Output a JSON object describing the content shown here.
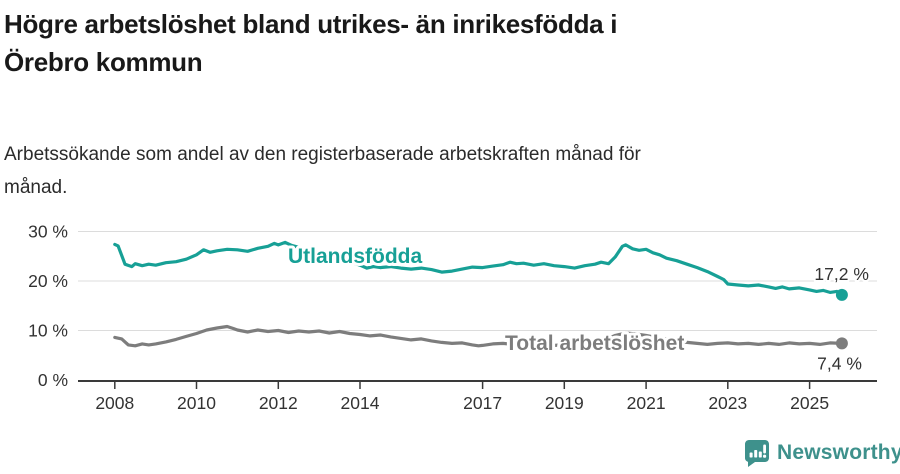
{
  "title": {
    "line1": "Högre arbetslöshet bland utrikes- än inrikesfödda i",
    "line2": "Örebro kommun"
  },
  "subtitle": {
    "line1": "Arbetssökande som andel av den registerbaserade arbetskraften månad för",
    "line2": "månad."
  },
  "footer": {
    "brand": "Newsworthy",
    "logo_icon": "bar-chart-speech-bubble-icon",
    "brand_color": "#3e918c"
  },
  "colors": {
    "background": "#ffffff",
    "axis": "#3a3a3a",
    "grid": "#dcdcdc",
    "tick_label": "#333333"
  },
  "chart_data": {
    "type": "line",
    "unit": "%",
    "grid": "horizontal-only",
    "legend": "inline-labels",
    "x_ticks": [
      2008,
      2010,
      2012,
      2014,
      2017,
      2019,
      2021,
      2023,
      2025
    ],
    "y_ticks": [
      0,
      10,
      20,
      30
    ],
    "y_tick_labels": [
      "0 %",
      "10 %",
      "20 %",
      "30 %"
    ],
    "xlim": [
      2007.1,
      2026.65
    ],
    "ylim": [
      0,
      30
    ],
    "series": [
      {
        "name": "Utlandsfödda",
        "color": "#17a096",
        "end_label": "17,2 %",
        "end_value": 17.2,
        "points": [
          [
            2008.0,
            27.4
          ],
          [
            2008.08,
            27.1
          ],
          [
            2008.25,
            23.4
          ],
          [
            2008.42,
            22.9
          ],
          [
            2008.5,
            23.5
          ],
          [
            2008.67,
            23.1
          ],
          [
            2008.83,
            23.4
          ],
          [
            2009.0,
            23.2
          ],
          [
            2009.25,
            23.7
          ],
          [
            2009.5,
            23.9
          ],
          [
            2009.75,
            24.4
          ],
          [
            2010.0,
            25.3
          ],
          [
            2010.17,
            26.3
          ],
          [
            2010.33,
            25.8
          ],
          [
            2010.5,
            26.1
          ],
          [
            2010.75,
            26.4
          ],
          [
            2011.0,
            26.3
          ],
          [
            2011.25,
            26.0
          ],
          [
            2011.5,
            26.6
          ],
          [
            2011.75,
            27.0
          ],
          [
            2011.9,
            27.6
          ],
          [
            2012.0,
            27.3
          ],
          [
            2012.17,
            27.8
          ],
          [
            2012.33,
            27.2
          ],
          [
            2012.5,
            26.8
          ],
          [
            2012.75,
            26.2
          ],
          [
            2013.0,
            25.7
          ],
          [
            2013.25,
            25.1
          ],
          [
            2013.5,
            24.5
          ],
          [
            2013.75,
            23.9
          ],
          [
            2014.0,
            23.2
          ],
          [
            2014.17,
            22.6
          ],
          [
            2014.33,
            22.9
          ],
          [
            2014.5,
            22.7
          ],
          [
            2014.75,
            22.9
          ],
          [
            2015.0,
            22.6
          ],
          [
            2015.25,
            22.4
          ],
          [
            2015.5,
            22.6
          ],
          [
            2015.75,
            22.3
          ],
          [
            2016.0,
            21.8
          ],
          [
            2016.25,
            22.0
          ],
          [
            2016.5,
            22.4
          ],
          [
            2016.75,
            22.8
          ],
          [
            2017.0,
            22.7
          ],
          [
            2017.25,
            23.0
          ],
          [
            2017.5,
            23.3
          ],
          [
            2017.67,
            23.8
          ],
          [
            2017.83,
            23.5
          ],
          [
            2018.0,
            23.6
          ],
          [
            2018.25,
            23.2
          ],
          [
            2018.5,
            23.5
          ],
          [
            2018.75,
            23.1
          ],
          [
            2019.0,
            22.9
          ],
          [
            2019.25,
            22.6
          ],
          [
            2019.5,
            23.1
          ],
          [
            2019.75,
            23.4
          ],
          [
            2019.9,
            23.8
          ],
          [
            2020.08,
            23.5
          ],
          [
            2020.25,
            24.9
          ],
          [
            2020.42,
            27.0
          ],
          [
            2020.5,
            27.3
          ],
          [
            2020.67,
            26.5
          ],
          [
            2020.83,
            26.2
          ],
          [
            2021.0,
            26.4
          ],
          [
            2021.17,
            25.7
          ],
          [
            2021.33,
            25.3
          ],
          [
            2021.5,
            24.6
          ],
          [
            2021.75,
            24.1
          ],
          [
            2022.0,
            23.4
          ],
          [
            2022.25,
            22.7
          ],
          [
            2022.5,
            21.9
          ],
          [
            2022.75,
            20.9
          ],
          [
            2022.9,
            20.3
          ],
          [
            2023.0,
            19.4
          ],
          [
            2023.25,
            19.2
          ],
          [
            2023.5,
            19.0
          ],
          [
            2023.75,
            19.2
          ],
          [
            2024.0,
            18.8
          ],
          [
            2024.17,
            18.5
          ],
          [
            2024.33,
            18.8
          ],
          [
            2024.5,
            18.4
          ],
          [
            2024.75,
            18.6
          ],
          [
            2025.0,
            18.2
          ],
          [
            2025.17,
            17.9
          ],
          [
            2025.33,
            18.1
          ],
          [
            2025.5,
            17.7
          ],
          [
            2025.67,
            17.9
          ],
          [
            2025.79,
            17.2
          ]
        ]
      },
      {
        "name": "Total arbetslöshet",
        "color": "#7d7d7d",
        "end_label": "7,4 %",
        "end_value": 7.4,
        "points": [
          [
            2008.0,
            8.6
          ],
          [
            2008.17,
            8.3
          ],
          [
            2008.33,
            7.1
          ],
          [
            2008.5,
            6.9
          ],
          [
            2008.67,
            7.3
          ],
          [
            2008.83,
            7.1
          ],
          [
            2009.0,
            7.3
          ],
          [
            2009.25,
            7.7
          ],
          [
            2009.5,
            8.2
          ],
          [
            2009.75,
            8.8
          ],
          [
            2010.0,
            9.4
          ],
          [
            2010.25,
            10.1
          ],
          [
            2010.5,
            10.5
          ],
          [
            2010.75,
            10.8
          ],
          [
            2010.9,
            10.4
          ],
          [
            2011.0,
            10.1
          ],
          [
            2011.25,
            9.7
          ],
          [
            2011.5,
            10.1
          ],
          [
            2011.75,
            9.8
          ],
          [
            2012.0,
            10.0
          ],
          [
            2012.25,
            9.6
          ],
          [
            2012.5,
            9.9
          ],
          [
            2012.75,
            9.7
          ],
          [
            2013.0,
            9.9
          ],
          [
            2013.25,
            9.5
          ],
          [
            2013.5,
            9.8
          ],
          [
            2013.75,
            9.4
          ],
          [
            2014.0,
            9.2
          ],
          [
            2014.25,
            8.9
          ],
          [
            2014.5,
            9.1
          ],
          [
            2014.75,
            8.7
          ],
          [
            2015.0,
            8.4
          ],
          [
            2015.25,
            8.1
          ],
          [
            2015.5,
            8.3
          ],
          [
            2015.75,
            7.9
          ],
          [
            2016.0,
            7.6
          ],
          [
            2016.25,
            7.4
          ],
          [
            2016.5,
            7.5
          ],
          [
            2016.75,
            7.1
          ],
          [
            2016.9,
            6.9
          ],
          [
            2017.0,
            7.0
          ],
          [
            2017.25,
            7.3
          ],
          [
            2017.5,
            7.4
          ],
          [
            2017.75,
            7.2
          ],
          [
            2018.0,
            7.1
          ],
          [
            2018.25,
            6.9
          ],
          [
            2018.5,
            7.1
          ],
          [
            2018.75,
            7.0
          ],
          [
            2019.0,
            7.1
          ],
          [
            2019.25,
            7.3
          ],
          [
            2019.5,
            7.6
          ],
          [
            2019.75,
            7.8
          ],
          [
            2020.0,
            8.1
          ],
          [
            2020.25,
            9.0
          ],
          [
            2020.5,
            9.5
          ],
          [
            2020.75,
            9.3
          ],
          [
            2021.0,
            9.0
          ],
          [
            2021.25,
            8.6
          ],
          [
            2021.5,
            8.3
          ],
          [
            2021.75,
            7.9
          ],
          [
            2022.0,
            7.6
          ],
          [
            2022.25,
            7.4
          ],
          [
            2022.5,
            7.2
          ],
          [
            2022.75,
            7.4
          ],
          [
            2023.0,
            7.5
          ],
          [
            2023.25,
            7.3
          ],
          [
            2023.5,
            7.4
          ],
          [
            2023.75,
            7.2
          ],
          [
            2024.0,
            7.4
          ],
          [
            2024.25,
            7.2
          ],
          [
            2024.5,
            7.5
          ],
          [
            2024.75,
            7.3
          ],
          [
            2025.0,
            7.4
          ],
          [
            2025.25,
            7.2
          ],
          [
            2025.5,
            7.5
          ],
          [
            2025.79,
            7.4
          ]
        ]
      }
    ]
  }
}
